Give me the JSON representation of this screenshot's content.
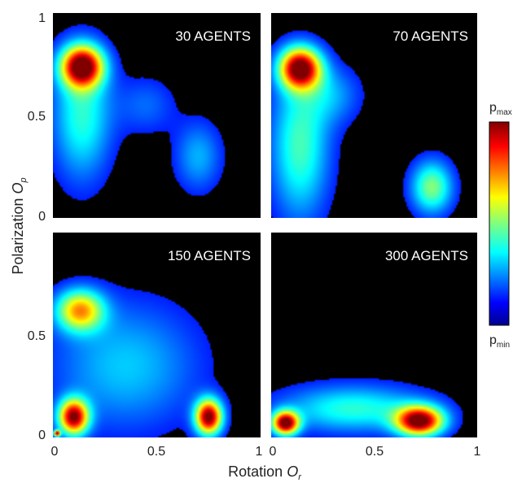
{
  "chart_data": {
    "type": "heatmap",
    "shared_axes": {
      "xlabel": "Rotation",
      "xlabel_subscript": "O",
      "xlabel_subscript_index": "r",
      "ylabel": "Polarization",
      "ylabel_symbol": "O",
      "ylabel_symbol_index": "p",
      "xlim": [
        0,
        1
      ],
      "ylim": [
        0,
        1
      ],
      "x_ticks": [
        "0",
        "0.5",
        "1"
      ],
      "y_ticks": [
        "0",
        "0.5",
        "1"
      ],
      "grid": false
    },
    "colorbar": {
      "colormap": "jet",
      "max_label": "p",
      "max_label_sub": "max",
      "min_label": "p",
      "min_label_sub": "min",
      "background_color": "#000000"
    },
    "panels": [
      {
        "label": "30 AGENTS",
        "density_peaks": [
          {
            "x": 0.14,
            "y": 0.74,
            "spread_x": 0.07,
            "spread_y": 0.07,
            "intensity": 1.0
          },
          {
            "x": 0.14,
            "y": 0.5,
            "spread_x": 0.1,
            "spread_y": 0.22,
            "intensity": 0.35
          },
          {
            "x": 0.7,
            "y": 0.3,
            "spread_x": 0.08,
            "spread_y": 0.12,
            "intensity": 0.22
          },
          {
            "x": 0.45,
            "y": 0.55,
            "spread_x": 0.1,
            "spread_y": 0.1,
            "intensity": 0.14
          }
        ]
      },
      {
        "label": "70 AGENTS",
        "density_peaks": [
          {
            "x": 0.14,
            "y": 0.73,
            "spread_x": 0.07,
            "spread_y": 0.07,
            "intensity": 1.0
          },
          {
            "x": 0.14,
            "y": 0.35,
            "spread_x": 0.1,
            "spread_y": 0.25,
            "intensity": 0.38
          },
          {
            "x": 0.78,
            "y": 0.15,
            "spread_x": 0.07,
            "spread_y": 0.09,
            "intensity": 0.45
          },
          {
            "x": 0.3,
            "y": 0.6,
            "spread_x": 0.1,
            "spread_y": 0.1,
            "intensity": 0.18
          }
        ]
      },
      {
        "label": "150 AGENTS",
        "density_peaks": [
          {
            "x": 0.1,
            "y": 0.1,
            "spread_x": 0.05,
            "spread_y": 0.06,
            "intensity": 0.95
          },
          {
            "x": 0.75,
            "y": 0.1,
            "spread_x": 0.045,
            "spread_y": 0.06,
            "intensity": 1.0
          },
          {
            "x": 0.13,
            "y": 0.62,
            "spread_x": 0.08,
            "spread_y": 0.07,
            "intensity": 0.65
          },
          {
            "x": 0.35,
            "y": 0.35,
            "spread_x": 0.25,
            "spread_y": 0.22,
            "intensity": 0.25
          },
          {
            "x": 0.02,
            "y": 0.02,
            "spread_x": 0.01,
            "spread_y": 0.01,
            "intensity": 0.9
          }
        ]
      },
      {
        "label": "300 AGENTS",
        "density_peaks": [
          {
            "x": 0.07,
            "y": 0.07,
            "spread_x": 0.045,
            "spread_y": 0.04,
            "intensity": 1.0
          },
          {
            "x": 0.72,
            "y": 0.08,
            "spread_x": 0.08,
            "spread_y": 0.05,
            "intensity": 1.0
          },
          {
            "x": 0.4,
            "y": 0.14,
            "spread_x": 0.25,
            "spread_y": 0.08,
            "intensity": 0.35
          }
        ]
      }
    ]
  }
}
